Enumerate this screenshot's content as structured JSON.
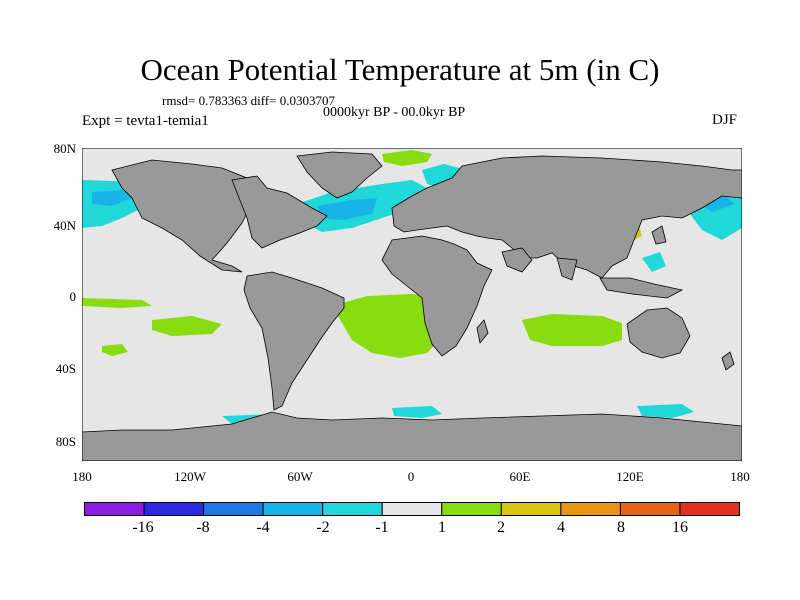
{
  "title": "Ocean Potential Temperature at 5m (in C)",
  "stats": "rmsd= 0.783363 diff= 0.0303707",
  "period": "0000kyr BP - 00.0kyr BP",
  "experiment": "Expt = tevta1-temia1",
  "season": "DJF",
  "lat_labels": [
    "80N",
    "40N",
    "0",
    "40S",
    "80S"
  ],
  "lon_labels": [
    "180",
    "120W",
    "60W",
    "0",
    "60E",
    "120E",
    "180"
  ],
  "colorbar": {
    "labels": [
      "-16",
      "-8",
      "-4",
      "-2",
      "-1",
      "1",
      "2",
      "4",
      "8",
      "16"
    ],
    "colors": [
      "#8a1ee0",
      "#2a2ae0",
      "#1e78e6",
      "#16b4e8",
      "#20d8d8",
      "#e6e6e6",
      "#88dc10",
      "#d8c814",
      "#e89614",
      "#e6641a",
      "#e0321e"
    ]
  },
  "colors": {
    "ocean_bg": "#e6e6e6",
    "land": "#999999",
    "neg_small": "#20d8d8",
    "neg_med": "#16b4e8",
    "pos_small": "#88dc10",
    "pos_med": "#d8c814"
  }
}
